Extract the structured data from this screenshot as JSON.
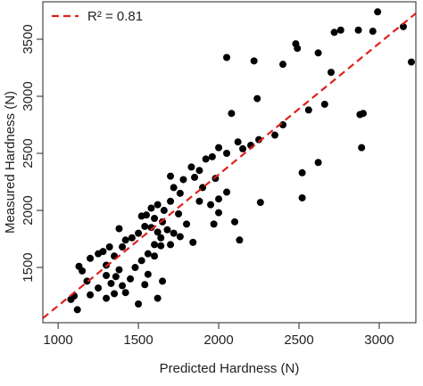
{
  "chart_data": {
    "type": "scatter",
    "xlabel": "Predicted Hardness (N)",
    "ylabel": "Measured Hardness (N)",
    "xlim": [
      905,
      3228
    ],
    "ylim": [
      1016,
      3828
    ],
    "xticks": [
      1000,
      1500,
      2000,
      2500,
      3000
    ],
    "yticks": [
      1500,
      2000,
      2500,
      3000,
      3500
    ],
    "legend": "top-left",
    "series": [
      {
        "name": "points",
        "color": "#000000",
        "x": [
          2990,
          3150,
          3200,
          2760,
          2720,
          2870,
          2960,
          2480,
          2490,
          2620,
          2700,
          2400,
          2220,
          2050,
          2900,
          2880,
          2890,
          2620,
          2520,
          2520,
          2560,
          2660,
          2240,
          2080,
          2400,
          2350,
          2250,
          2200,
          2150,
          2120,
          2050,
          2000,
          1960,
          1920,
          1880,
          1830,
          1850,
          1780,
          1700,
          1720,
          1760,
          1900,
          1980,
          2050,
          2000,
          1950,
          1880,
          2260,
          2100,
          2130,
          2000,
          1970,
          1800,
          1750,
          1700,
          1660,
          1620,
          1580,
          1550,
          1520,
          1600,
          1650,
          1680,
          1720,
          1620,
          1580,
          1540,
          1500,
          1460,
          1420,
          1400,
          1350,
          1320,
          1280,
          1250,
          1200,
          1300,
          1380,
          1450,
          1480,
          1520,
          1560,
          1600,
          1640,
          1700,
          1560,
          1540,
          1650,
          1620,
          1500,
          1400,
          1360,
          1330,
          1300,
          1250,
          1200,
          1180,
          1150,
          1130,
          1100,
          1080,
          1120,
          1300,
          1350,
          1420,
          1600,
          1640,
          1760,
          1840,
          1380
        ],
        "y": [
          3740,
          3610,
          3300,
          3580,
          3560,
          3580,
          3570,
          3460,
          3420,
          3380,
          3210,
          3280,
          3310,
          3340,
          2850,
          2840,
          2550,
          2420,
          2330,
          2110,
          2880,
          2930,
          2980,
          2850,
          2750,
          2660,
          2620,
          2570,
          2540,
          2600,
          2500,
          2550,
          2470,
          2450,
          2350,
          2380,
          2290,
          2270,
          2300,
          2200,
          2150,
          2200,
          2280,
          2160,
          2100,
          2050,
          2080,
          2070,
          1900,
          1740,
          1980,
          1880,
          1880,
          1970,
          2080,
          2000,
          2050,
          2020,
          1960,
          1950,
          1930,
          1900,
          1830,
          1800,
          1810,
          1850,
          1860,
          1800,
          1760,
          1740,
          1680,
          1600,
          1680,
          1640,
          1620,
          1580,
          1520,
          1480,
          1400,
          1500,
          1560,
          1620,
          1700,
          1760,
          1700,
          1440,
          1350,
          1380,
          1230,
          1180,
          1340,
          1420,
          1360,
          1430,
          1320,
          1260,
          1380,
          1470,
          1510,
          1250,
          1220,
          1130,
          1230,
          1270,
          1280,
          1600,
          1690,
          1770,
          1720,
          1840
        ]
      },
      {
        "name": "R² = 0.81",
        "type": "line",
        "color": "#e0201b",
        "dashed": true,
        "x": [
          905,
          3228
        ],
        "y": [
          1055,
          3727
        ]
      }
    ]
  }
}
